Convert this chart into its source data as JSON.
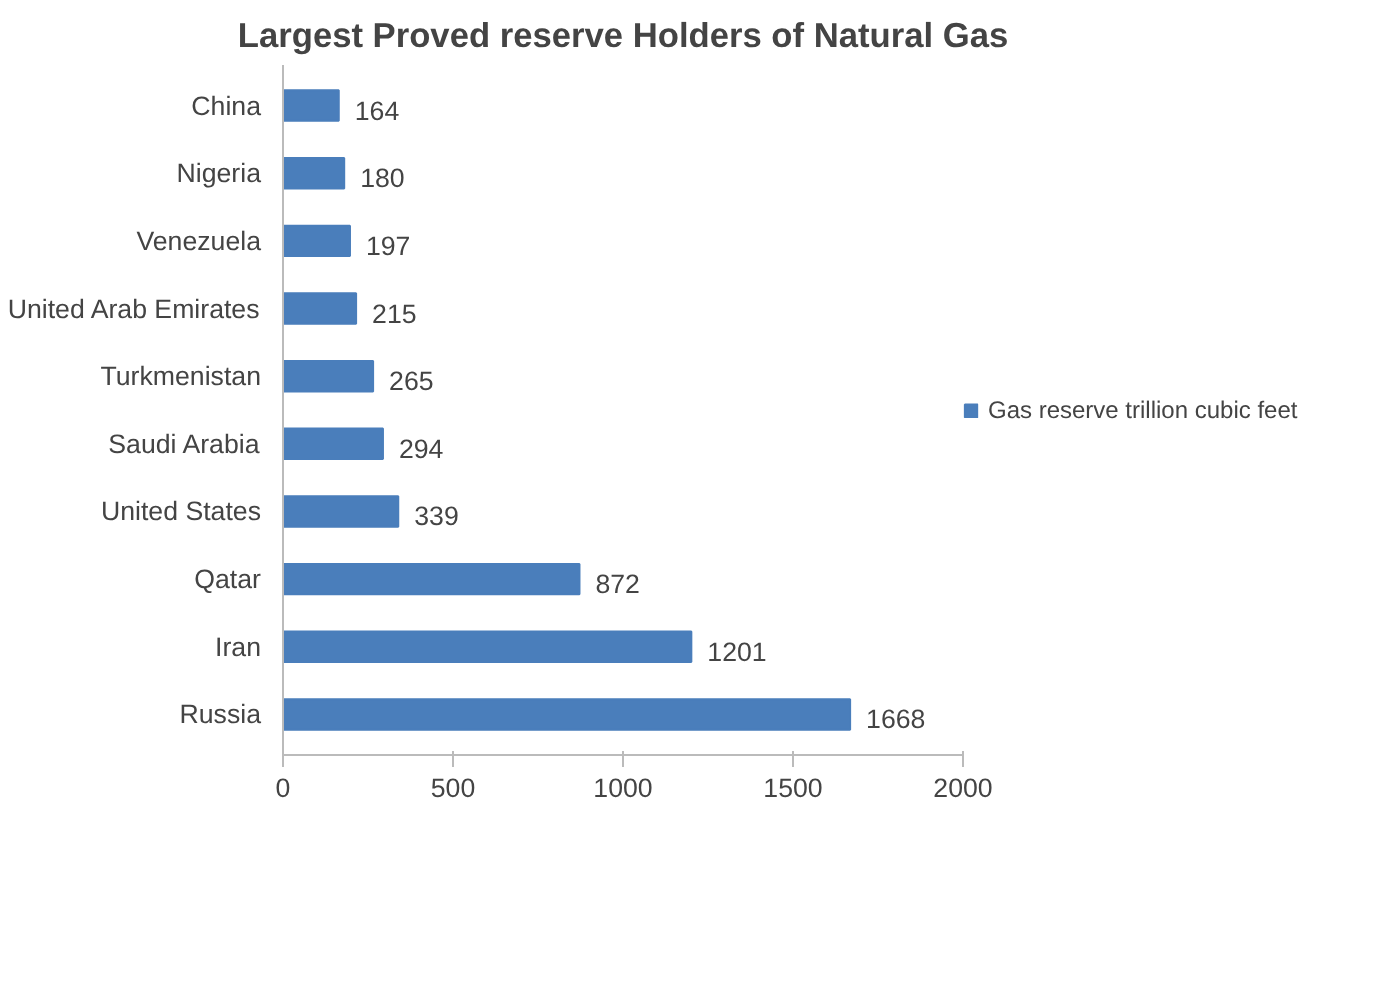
{
  "chart_data": {
    "type": "bar",
    "orientation": "horizontal",
    "title": "Largest Proved reserve Holders of Natural Gas",
    "categories": [
      "China",
      "Nigeria",
      "Venezuela",
      "United Arab Emirates",
      "Turkmenistan",
      "Saudi Arabia",
      "United States",
      "Qatar",
      "Iran",
      "Russia"
    ],
    "series": [
      {
        "name": "Gas reserve trillion cubic feet",
        "color": "#4a7ebb",
        "values": [
          164,
          180,
          197,
          215,
          265,
          294,
          339,
          872,
          1201,
          1668
        ]
      }
    ],
    "xlim": [
      0,
      2000
    ],
    "xticks": [
      0,
      500,
      1000,
      1500,
      2000
    ],
    "data_labels": true,
    "legend": "right",
    "grid": false
  }
}
